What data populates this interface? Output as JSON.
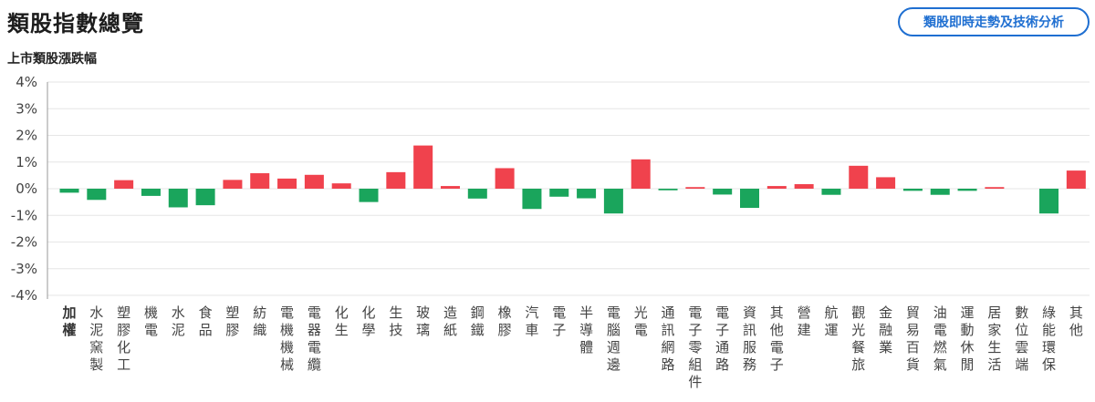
{
  "header": {
    "title": "類股指數總覽",
    "button_label": "類股即時走勢及技術分析"
  },
  "chart_data": {
    "type": "bar",
    "title": "上市類股漲跌幅",
    "ylim": [
      -4,
      4
    ],
    "y_ticks": [
      "4%",
      "3%",
      "2%",
      "1%",
      "0%",
      "-1%",
      "-2%",
      "-3%",
      "-4%"
    ],
    "grid": true,
    "colors": {
      "up": "#f0424d",
      "down": "#1aa55c",
      "grid": "#e6e6e6",
      "axis": "#999999"
    },
    "categories": [
      "加權",
      "水泥窯製",
      "塑膠化工",
      "機電",
      "水泥",
      "食品",
      "塑膠",
      "紡織",
      "電機機械",
      "電器電纜",
      "化生",
      "化學",
      "生技",
      "玻璃",
      "造紙",
      "鋼鐵",
      "橡膠",
      "汽車",
      "電子",
      "半導體",
      "電腦週邊",
      "光電",
      "通訊網路",
      "電子零組件",
      "電子通路",
      "資訊服務",
      "其他電子",
      "營建",
      "航運",
      "觀光餐旅",
      "金融業",
      "貿易百貨",
      "油電燃氣",
      "運動休閒",
      "居家生活",
      "數位雲端",
      "綠能環保",
      "其他"
    ],
    "values": [
      -0.15,
      -0.42,
      0.32,
      -0.27,
      -0.7,
      -0.62,
      0.33,
      0.58,
      0.38,
      0.52,
      0.2,
      -0.5,
      0.62,
      1.62,
      0.1,
      -0.37,
      0.77,
      -0.76,
      -0.3,
      -0.36,
      -0.93,
      1.1,
      -0.06,
      0.06,
      -0.22,
      -0.72,
      0.1,
      0.17,
      -0.23,
      0.86,
      0.43,
      -0.08,
      -0.23,
      -0.08,
      0.06,
      0.0,
      -0.93,
      0.68
    ]
  }
}
